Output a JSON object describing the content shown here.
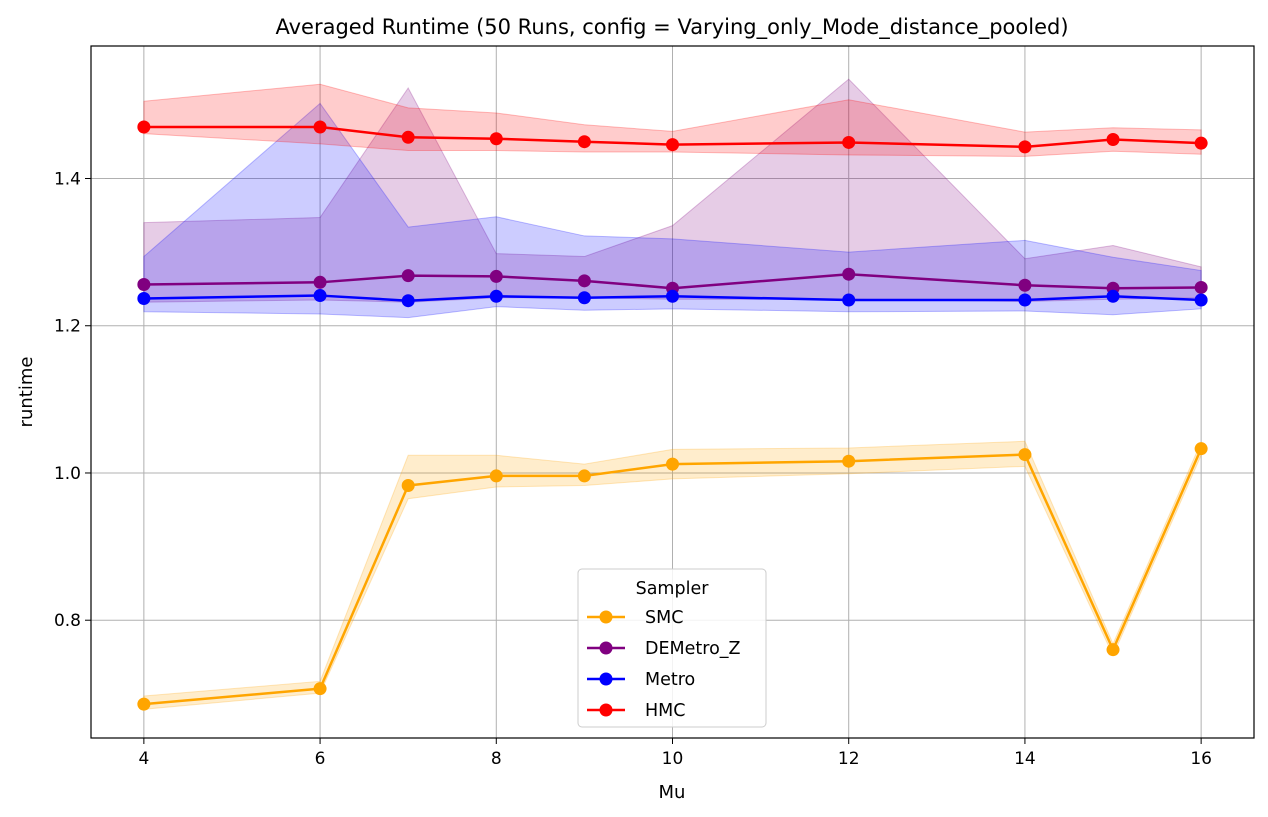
{
  "chart_data": {
    "type": "line",
    "title": "Averaged Runtime (50 Runs, config = Varying_only_Mode_distance_pooled)",
    "xlabel": "Mu",
    "ylabel": "runtime",
    "x": [
      4,
      6,
      7,
      8,
      9,
      10,
      12,
      14,
      15,
      16
    ],
    "xlim": [
      3.4,
      16.6
    ],
    "ylim": [
      0.64,
      1.58
    ],
    "xticks": [
      4,
      6,
      8,
      10,
      12,
      14,
      16
    ],
    "xtick_labels": [
      "4",
      "6",
      "8",
      "10",
      "12",
      "14",
      "16"
    ],
    "yticks": [
      0.8,
      1.0,
      1.2,
      1.4
    ],
    "ytick_labels": [
      "0.8",
      "1.0",
      "1.2",
      "1.4"
    ],
    "grid": true,
    "legend": {
      "title": "Sampler",
      "position": "lower-center"
    },
    "series": [
      {
        "name": "SMC",
        "color": "#ffa500",
        "values": [
          0.686,
          0.707,
          0.983,
          0.996,
          0.996,
          1.012,
          1.016,
          1.025,
          0.76,
          1.033
        ],
        "lower": [
          0.679,
          0.701,
          0.965,
          0.981,
          0.983,
          0.992,
          0.999,
          1.009,
          0.752,
          1.024
        ],
        "upper": [
          0.697,
          0.717,
          1.024,
          1.024,
          1.012,
          1.032,
          1.034,
          1.043,
          0.768,
          1.042
        ]
      },
      {
        "name": "DEMetro_Z",
        "color": "#800080",
        "values": [
          1.256,
          1.259,
          1.268,
          1.267,
          1.261,
          1.251,
          1.27,
          1.255,
          1.251,
          1.252
        ],
        "lower": [
          1.232,
          1.235,
          1.232,
          1.238,
          1.238,
          1.236,
          1.236,
          1.233,
          1.236,
          1.238
        ],
        "upper": [
          1.34,
          1.347,
          1.523,
          1.298,
          1.294,
          1.336,
          1.535,
          1.291,
          1.309,
          1.28
        ]
      },
      {
        "name": "Metro",
        "color": "#0000ff",
        "values": [
          1.237,
          1.241,
          1.234,
          1.24,
          1.238,
          1.24,
          1.235,
          1.235,
          1.24,
          1.235
        ],
        "lower": [
          1.219,
          1.216,
          1.211,
          1.226,
          1.221,
          1.223,
          1.219,
          1.22,
          1.215,
          1.223
        ],
        "upper": [
          1.294,
          1.502,
          1.334,
          1.348,
          1.322,
          1.318,
          1.3,
          1.316,
          1.293,
          1.275
        ]
      },
      {
        "name": "HMC",
        "color": "#ff0000",
        "values": [
          1.47,
          1.47,
          1.456,
          1.454,
          1.45,
          1.446,
          1.449,
          1.443,
          1.453,
          1.448
        ],
        "lower": [
          1.461,
          1.447,
          1.438,
          1.438,
          1.436,
          1.436,
          1.432,
          1.43,
          1.437,
          1.433
        ],
        "upper": [
          1.505,
          1.528,
          1.496,
          1.489,
          1.473,
          1.464,
          1.507,
          1.463,
          1.469,
          1.466
        ]
      }
    ]
  }
}
